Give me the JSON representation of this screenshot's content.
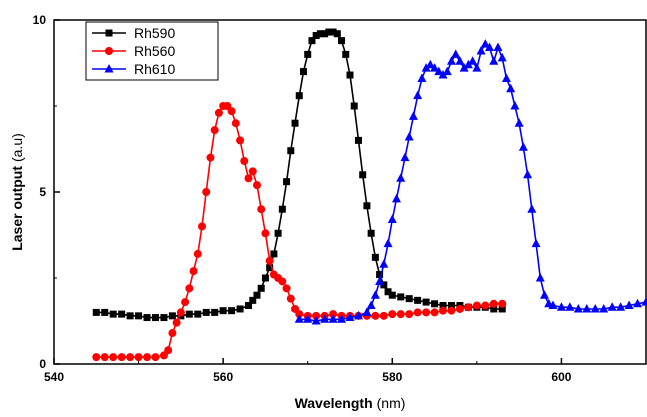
{
  "chart_data": {
    "type": "line",
    "xlabel_main": "Wavelength",
    "xlabel_unit": "(nm)",
    "ylabel_main": "Laser output",
    "ylabel_unit": "(a.u)",
    "xlim": [
      540,
      610
    ],
    "ylim": [
      0,
      10
    ],
    "x_ticks": [
      540,
      560,
      580,
      600
    ],
    "y_ticks": [
      0,
      5,
      10
    ],
    "legend_position": "top-left",
    "grid": false,
    "series": [
      {
        "name": "Rh590",
        "color": "#000000",
        "marker": "square",
        "points": [
          [
            545,
            1.5
          ],
          [
            546,
            1.5
          ],
          [
            547,
            1.45
          ],
          [
            548,
            1.45
          ],
          [
            549,
            1.4
          ],
          [
            550,
            1.4
          ],
          [
            551,
            1.35
          ],
          [
            552,
            1.35
          ],
          [
            553,
            1.35
          ],
          [
            554,
            1.4
          ],
          [
            555,
            1.4
          ],
          [
            556,
            1.45
          ],
          [
            557,
            1.45
          ],
          [
            558,
            1.5
          ],
          [
            559,
            1.5
          ],
          [
            560,
            1.55
          ],
          [
            561,
            1.55
          ],
          [
            562,
            1.6
          ],
          [
            563,
            1.7
          ],
          [
            563.5,
            1.85
          ],
          [
            564,
            2.0
          ],
          [
            564.5,
            2.2
          ],
          [
            565,
            2.5
          ],
          [
            565.5,
            2.8
          ],
          [
            566,
            3.2
          ],
          [
            566.5,
            3.8
          ],
          [
            567,
            4.5
          ],
          [
            567.5,
            5.3
          ],
          [
            568,
            6.2
          ],
          [
            568.5,
            7.0
          ],
          [
            569,
            7.8
          ],
          [
            569.5,
            8.5
          ],
          [
            570,
            9.0
          ],
          [
            570.5,
            9.4
          ],
          [
            571,
            9.55
          ],
          [
            571.5,
            9.6
          ],
          [
            572,
            9.6
          ],
          [
            572.5,
            9.65
          ],
          [
            573,
            9.65
          ],
          [
            573.5,
            9.6
          ],
          [
            574,
            9.4
          ],
          [
            574.5,
            9.0
          ],
          [
            575,
            8.4
          ],
          [
            575.5,
            7.5
          ],
          [
            576,
            6.5
          ],
          [
            576.5,
            5.5
          ],
          [
            577,
            4.6
          ],
          [
            577.5,
            3.8
          ],
          [
            578,
            3.1
          ],
          [
            578.5,
            2.6
          ],
          [
            579,
            2.3
          ],
          [
            579.5,
            2.1
          ],
          [
            580,
            2.0
          ],
          [
            581,
            1.95
          ],
          [
            582,
            1.9
          ],
          [
            583,
            1.85
          ],
          [
            584,
            1.8
          ],
          [
            585,
            1.75
          ],
          [
            586,
            1.7
          ],
          [
            587,
            1.7
          ],
          [
            588,
            1.7
          ],
          [
            589,
            1.65
          ],
          [
            590,
            1.65
          ],
          [
            591,
            1.65
          ],
          [
            592,
            1.6
          ],
          [
            593,
            1.6
          ]
        ]
      },
      {
        "name": "Rh560",
        "color": "#ff0000",
        "marker": "circle",
        "points": [
          [
            545,
            0.2
          ],
          [
            546,
            0.2
          ],
          [
            547,
            0.2
          ],
          [
            548,
            0.2
          ],
          [
            549,
            0.2
          ],
          [
            550,
            0.2
          ],
          [
            551,
            0.2
          ],
          [
            552,
            0.2
          ],
          [
            553,
            0.25
          ],
          [
            553.5,
            0.4
          ],
          [
            554,
            0.9
          ],
          [
            554.5,
            1.2
          ],
          [
            555,
            1.5
          ],
          [
            555.5,
            1.8
          ],
          [
            556,
            2.2
          ],
          [
            556.5,
            2.7
          ],
          [
            557,
            3.2
          ],
          [
            557.5,
            4.0
          ],
          [
            558,
            5.0
          ],
          [
            558.5,
            6.0
          ],
          [
            559,
            6.8
          ],
          [
            559.5,
            7.3
          ],
          [
            560,
            7.5
          ],
          [
            560.5,
            7.5
          ],
          [
            561,
            7.35
          ],
          [
            561.5,
            7.0
          ],
          [
            562,
            6.5
          ],
          [
            562.5,
            5.9
          ],
          [
            563,
            5.4
          ],
          [
            563.5,
            5.6
          ],
          [
            564,
            5.2
          ],
          [
            564.5,
            4.5
          ],
          [
            565,
            3.8
          ],
          [
            565.5,
            3.0
          ],
          [
            566,
            2.6
          ],
          [
            566.5,
            2.5
          ],
          [
            567,
            2.4
          ],
          [
            567.5,
            2.2
          ],
          [
            568,
            1.9
          ],
          [
            568.5,
            1.6
          ],
          [
            569,
            1.45
          ],
          [
            570,
            1.4
          ],
          [
            571,
            1.4
          ],
          [
            572,
            1.4
          ],
          [
            573,
            1.45
          ],
          [
            574,
            1.4
          ],
          [
            575,
            1.4
          ],
          [
            576,
            1.4
          ],
          [
            577,
            1.4
          ],
          [
            578,
            1.4
          ],
          [
            579,
            1.4
          ],
          [
            580,
            1.45
          ],
          [
            581,
            1.45
          ],
          [
            582,
            1.45
          ],
          [
            583,
            1.5
          ],
          [
            584,
            1.5
          ],
          [
            585,
            1.5
          ],
          [
            586,
            1.55
          ],
          [
            587,
            1.55
          ],
          [
            588,
            1.6
          ],
          [
            589,
            1.65
          ],
          [
            590,
            1.7
          ],
          [
            591,
            1.7
          ],
          [
            592,
            1.75
          ],
          [
            593,
            1.75
          ]
        ]
      },
      {
        "name": "Rh610",
        "color": "#0000ff",
        "marker": "triangle",
        "points": [
          [
            569,
            1.3
          ],
          [
            570,
            1.3
          ],
          [
            571,
            1.25
          ],
          [
            572,
            1.3
          ],
          [
            573,
            1.3
          ],
          [
            574,
            1.3
          ],
          [
            575,
            1.35
          ],
          [
            576,
            1.4
          ],
          [
            577,
            1.5
          ],
          [
            577.5,
            1.7
          ],
          [
            578,
            2.0
          ],
          [
            578.5,
            2.4
          ],
          [
            579,
            2.9
          ],
          [
            579.5,
            3.5
          ],
          [
            580,
            4.2
          ],
          [
            580.5,
            4.8
          ],
          [
            581,
            5.4
          ],
          [
            581.5,
            6.0
          ],
          [
            582,
            6.6
          ],
          [
            582.5,
            7.2
          ],
          [
            583,
            7.8
          ],
          [
            583.5,
            8.3
          ],
          [
            584,
            8.6
          ],
          [
            584.5,
            8.7
          ],
          [
            585,
            8.6
          ],
          [
            585.5,
            8.5
          ],
          [
            586,
            8.4
          ],
          [
            586.5,
            8.5
          ],
          [
            587,
            8.8
          ],
          [
            587.5,
            9.0
          ],
          [
            588,
            8.8
          ],
          [
            588.5,
            8.6
          ],
          [
            589,
            8.7
          ],
          [
            589.5,
            8.8
          ],
          [
            590,
            8.6
          ],
          [
            590.5,
            9.1
          ],
          [
            591,
            9.3
          ],
          [
            591.5,
            9.2
          ],
          [
            592,
            8.8
          ],
          [
            592.5,
            9.2
          ],
          [
            593,
            8.9
          ],
          [
            593.5,
            8.3
          ],
          [
            594,
            8.0
          ],
          [
            594.5,
            7.5
          ],
          [
            595,
            7.0
          ],
          [
            595.5,
            6.3
          ],
          [
            596,
            5.5
          ],
          [
            596.5,
            4.5
          ],
          [
            597,
            3.5
          ],
          [
            597.5,
            2.5
          ],
          [
            598,
            2.0
          ],
          [
            598.5,
            1.75
          ],
          [
            599,
            1.7
          ],
          [
            600,
            1.65
          ],
          [
            601,
            1.65
          ],
          [
            602,
            1.6
          ],
          [
            603,
            1.6
          ],
          [
            604,
            1.6
          ],
          [
            605,
            1.6
          ],
          [
            606,
            1.65
          ],
          [
            607,
            1.65
          ],
          [
            608,
            1.7
          ],
          [
            609,
            1.75
          ],
          [
            610,
            1.8
          ]
        ]
      }
    ]
  }
}
